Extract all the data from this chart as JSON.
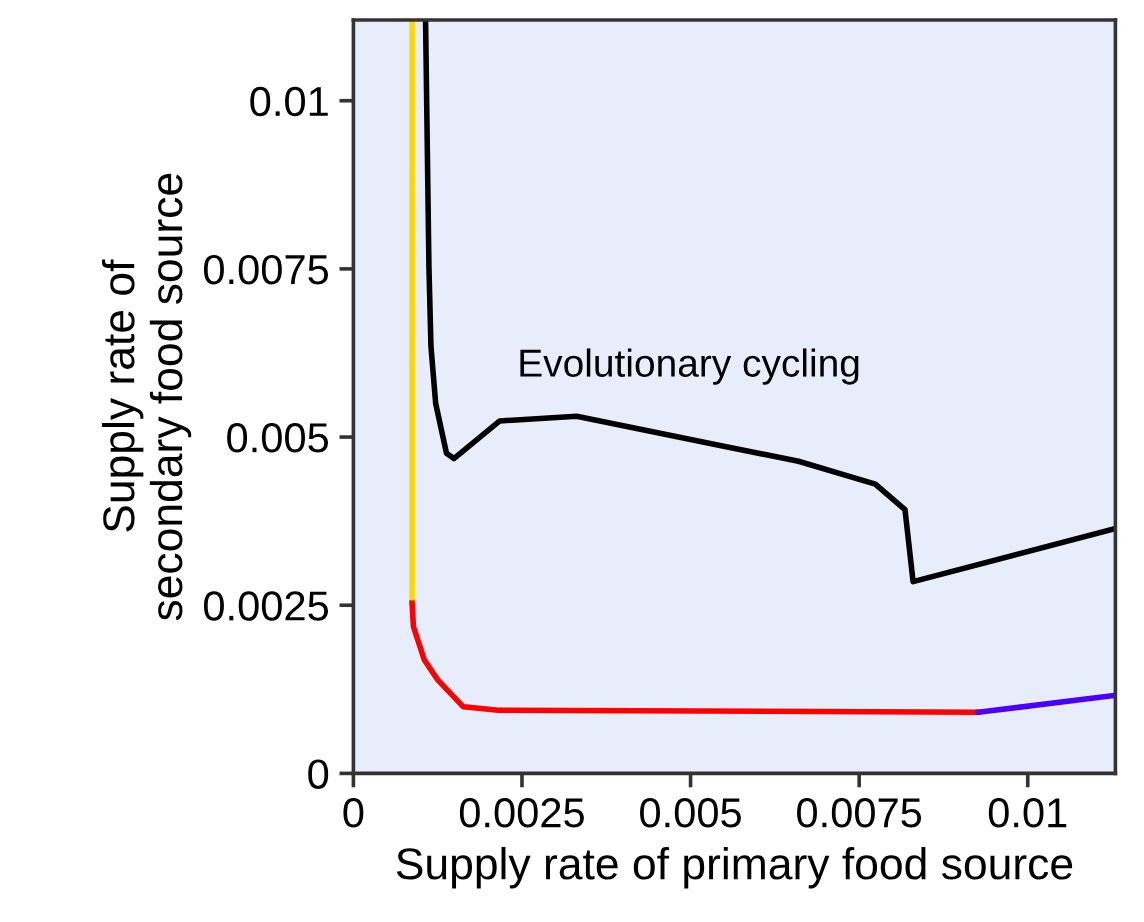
{
  "chart_data": {
    "type": "line",
    "xlabel": "Supply rate of primary food source",
    "ylabel": "Supply rate of\nsecondary food source",
    "annotations": [
      "Evolutionary cycling"
    ],
    "xlim": [
      0,
      0.0113
    ],
    "ylim": [
      0,
      0.0112
    ],
    "xticks": [
      0,
      0.0025,
      0.005,
      0.0075,
      0.01
    ],
    "yticks": [
      0,
      0.0025,
      0.005,
      0.0075,
      0.01
    ],
    "grid": false,
    "legend": false,
    "marker": "none",
    "line_style": "solid",
    "series": [
      {
        "color": "#ffd700",
        "x": [
          0.00087,
          0.00087
        ],
        "values": [
          0.0112,
          0.00253
        ]
      },
      {
        "color": "#ff0000",
        "x": [
          0.00087,
          0.00089,
          0.00105,
          0.00125,
          0.00163,
          0.00215,
          0.00927
        ],
        "values": [
          0.00253,
          0.00218,
          0.00169,
          0.00139,
          0.00099,
          0.00094,
          0.00091
        ]
      },
      {
        "color": "#4b00ff",
        "x": [
          0.00927,
          0.0113
        ],
        "values": [
          0.00091,
          0.00116
        ]
      },
      {
        "color": "#000000",
        "x": [
          0.00107,
          0.00112,
          0.00115,
          0.00122,
          0.00138,
          0.00149,
          0.00217,
          0.00331,
          0.00551,
          0.0066,
          0.00774,
          0.00818,
          0.0083,
          0.0113
        ],
        "values": [
          0.0112,
          0.00754,
          0.00635,
          0.0055,
          0.00476,
          0.00468,
          0.00524,
          0.00531,
          0.00486,
          0.00464,
          0.0043,
          0.00392,
          0.00285,
          0.00364
        ]
      }
    ]
  }
}
